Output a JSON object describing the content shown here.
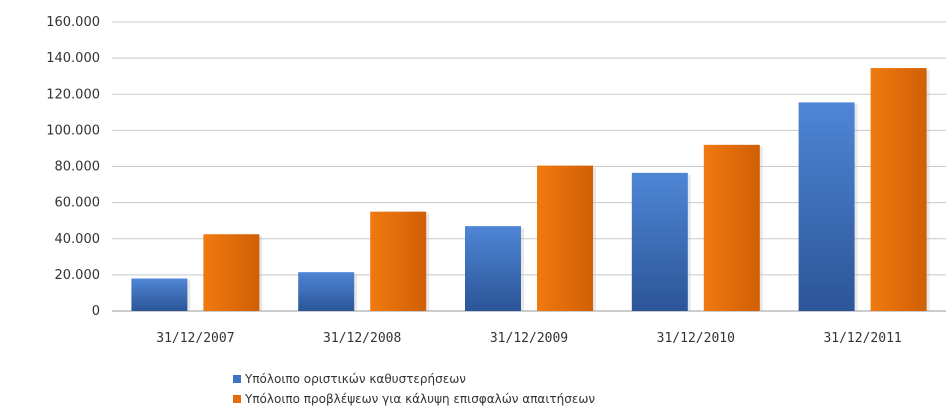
{
  "chart_data": {
    "type": "bar",
    "title": "",
    "xlabel": "",
    "ylabel": "",
    "categories": [
      "31/12/2007",
      "31/12/2008",
      "31/12/2009",
      "31/12/2010",
      "31/12/2011"
    ],
    "y_ticks": [
      "0",
      "20.000",
      "40.000",
      "60.000",
      "80.000",
      "100.000",
      "120.000",
      "140.000",
      "160.000"
    ],
    "ylim": [
      0,
      160000
    ],
    "grid": true,
    "legend_position": "bottom",
    "series": [
      {
        "name": "Υπόλοιπο οριστικών καθυστερήσεων",
        "color": "#3f74c4",
        "values": [
          18000,
          21500,
          47000,
          76500,
          115500
        ]
      },
      {
        "name": "Υπόλοιπο προβλέψεων για κάλυψη επισφαλών απαιτήσεων",
        "color": "#e46c0a",
        "values": [
          42500,
          55000,
          80500,
          92000,
          134500
        ]
      }
    ]
  }
}
